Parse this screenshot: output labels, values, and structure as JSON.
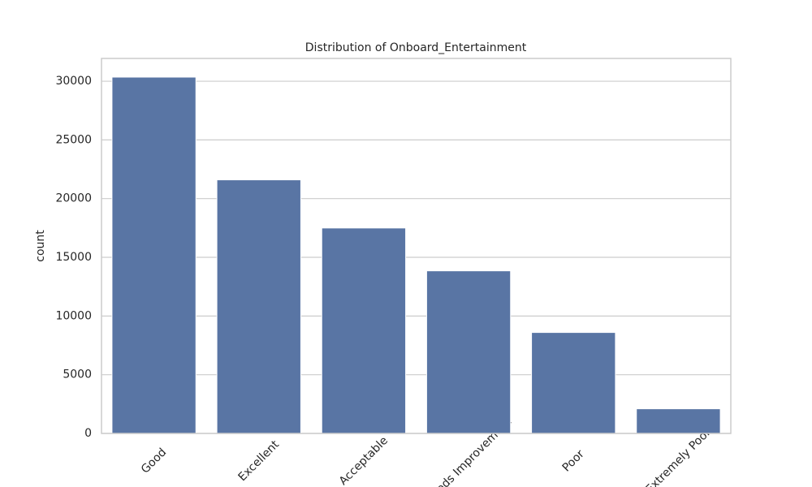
{
  "chart_data": {
    "type": "bar",
    "title": "Distribution of Onboard_Entertainment",
    "y_label": "count",
    "categories": [
      "Good",
      "Excellent",
      "Acceptable",
      "Needs Improvement",
      "Poor",
      "Extremely Poor"
    ],
    "values": [
      30350,
      21600,
      17500,
      13850,
      8600,
      2100
    ],
    "color": "#5975a4",
    "ylim": [
      0,
      31940
    ],
    "yticks": [
      0,
      5000,
      10000,
      15000,
      20000,
      25000,
      30000
    ],
    "grid": true
  }
}
